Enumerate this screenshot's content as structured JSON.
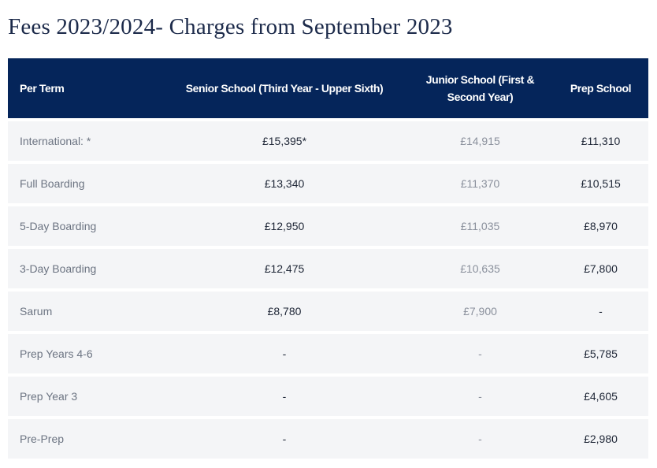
{
  "page": {
    "title": "Fees 2023/2024- Charges from September 2023"
  },
  "colors": {
    "header_background": "#05255a",
    "header_text": "#ffffff",
    "row_background": "#f4f5f7",
    "title_text": "#1c2a4a"
  },
  "table": {
    "headers": {
      "term": "Per Term",
      "senior": "Senior School (Third Year - Upper Sixth)",
      "junior": "Junior School (First & Second Year)",
      "prep": "Prep School"
    },
    "rows": [
      {
        "term": "International: *",
        "senior": "£15,395*",
        "junior": "£14,915",
        "prep": "£11,310"
      },
      {
        "term": "Full Boarding",
        "senior": "£13,340",
        "junior": "£11,370",
        "prep": "£10,515"
      },
      {
        "term": "5-Day Boarding",
        "senior": "£12,950",
        "junior": "£11,035",
        "prep": "£8,970"
      },
      {
        "term": "3-Day Boarding",
        "senior": "£12,475",
        "junior": "£10,635",
        "prep": "£7,800"
      },
      {
        "term": "Sarum",
        "senior": "£8,780",
        "junior": "£7,900",
        "prep": "-"
      },
      {
        "term": "Prep Years 4-6",
        "senior": "-",
        "junior": "-",
        "prep": "£5,785"
      },
      {
        "term": "Prep Year 3",
        "senior": "-",
        "junior": "-",
        "prep": "£4,605"
      },
      {
        "term": "Pre-Prep",
        "senior": "-",
        "junior": "-",
        "prep": "£2,980"
      }
    ]
  }
}
